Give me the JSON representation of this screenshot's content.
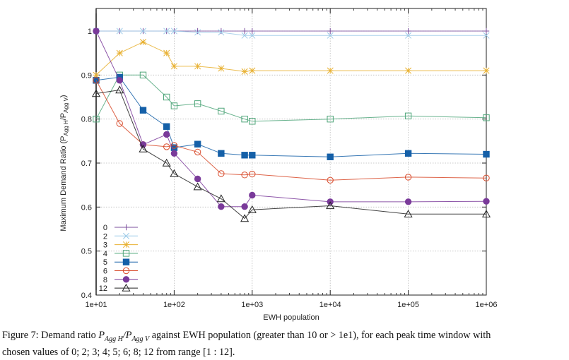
{
  "chart_data": {
    "type": "line",
    "title": "",
    "xlabel": "EWH population",
    "ylabel": "Maximum Demand Ratio (P_AggH/P_AggV)",
    "ylabel_parts": {
      "prefix": "Maximum Demand Ratio (P",
      "sub1": "Agg H",
      "mid": "/P",
      "sub2": "Agg V",
      "suffix": ")"
    },
    "xscale": "log",
    "xlim": [
      10,
      1000000
    ],
    "ylim": [
      0.4,
      1.05
    ],
    "xticks": [
      10,
      100,
      1000,
      10000,
      100000,
      1000000
    ],
    "xtick_labels": [
      "1e+01",
      "1e+02",
      "1e+03",
      "1e+04",
      "1e+05",
      "1e+06"
    ],
    "yticks": [
      0.4,
      0.5,
      0.6,
      0.7,
      0.8,
      0.9,
      1.0
    ],
    "ytick_labels": [
      "0.4",
      "0.5",
      "0.6",
      "0.7",
      "0.8",
      "0.9",
      "1"
    ],
    "grid": true,
    "legend_position": "bottom-left",
    "x": [
      10,
      20,
      40,
      80,
      100,
      200,
      400,
      800,
      1000,
      10000,
      100000,
      1000000
    ],
    "series": [
      {
        "name": "0",
        "color": "#7b4f9e",
        "marker": "plus",
        "values": [
          1.0,
          1.0,
          1.0,
          1.0,
          1.0,
          1.0,
          1.0,
          1.0,
          1.0,
          1.0,
          1.0,
          1.0
        ]
      },
      {
        "name": "2",
        "color": "#9ccae8",
        "marker": "cross",
        "values": [
          1.0,
          1.0,
          1.0,
          1.0,
          1.0,
          0.997,
          0.997,
          0.99,
          0.99,
          0.99,
          0.99,
          0.99
        ]
      },
      {
        "name": "3",
        "color": "#e8b030",
        "marker": "star",
        "values": [
          0.9,
          0.95,
          0.975,
          0.95,
          0.92,
          0.92,
          0.915,
          0.908,
          0.91,
          0.91,
          0.91,
          0.91
        ]
      },
      {
        "name": "4",
        "color": "#4fa67a",
        "marker": "square-open",
        "values": [
          0.8,
          0.9,
          0.9,
          0.85,
          0.83,
          0.835,
          0.818,
          0.8,
          0.795,
          0.8,
          0.807,
          0.803
        ]
      },
      {
        "name": "5",
        "color": "#1560a8",
        "marker": "square-filled",
        "values": [
          0.888,
          0.895,
          0.82,
          0.783,
          0.735,
          0.743,
          0.722,
          0.718,
          0.718,
          0.714,
          0.722,
          0.72
        ]
      },
      {
        "name": "6",
        "color": "#d84a2a",
        "marker": "circle-open",
        "values": [
          0.888,
          0.79,
          0.742,
          0.737,
          0.74,
          0.725,
          0.676,
          0.673,
          0.675,
          0.661,
          0.668,
          0.666
        ]
      },
      {
        "name": "8",
        "color": "#7a3a9a",
        "marker": "circle-filled",
        "values": [
          1.0,
          0.888,
          0.742,
          0.765,
          0.722,
          0.664,
          0.601,
          0.601,
          0.627,
          0.612,
          0.612,
          0.613
        ]
      },
      {
        "name": "12",
        "color": "#222222",
        "marker": "triangle-open",
        "values": [
          0.858,
          0.866,
          0.732,
          0.7,
          0.676,
          0.646,
          0.619,
          0.574,
          0.594,
          0.603,
          0.584,
          0.584
        ]
      }
    ]
  },
  "caption": {
    "prefix": "Figure 7: Demand ratio ",
    "math_ratio": "P",
    "sub_h": "Agg H",
    "slash": "/P",
    "sub_v": "Agg V",
    "middle": " against EWH population (greater than 10 or > 1e1), for each peak time window with",
    "line2": "chosen values of 0; 2; 3; 4; 5; 6; 8; 12 from range [1 : 12]."
  }
}
